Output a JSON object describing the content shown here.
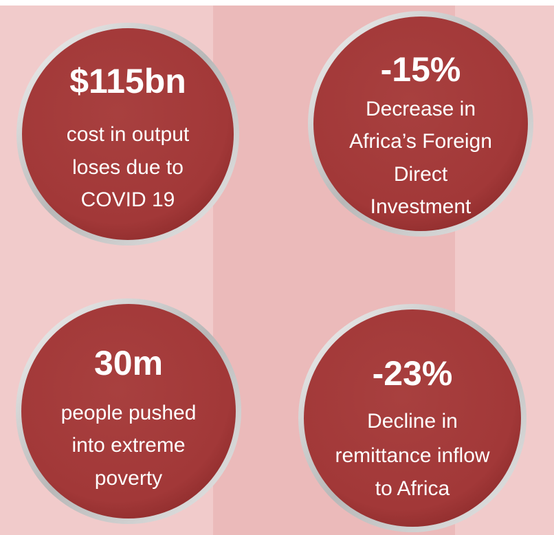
{
  "stats": [
    {
      "value": "$115bn",
      "description": [
        "cost in output",
        "loses due to",
        "COVID 19"
      ]
    },
    {
      "value": "-15%",
      "description": [
        "Decrease in",
        "Africa’s Foreign",
        "Direct",
        "Investment"
      ]
    },
    {
      "value": "30m",
      "description": [
        "people pushed",
        "into extreme",
        "poverty"
      ]
    },
    {
      "value": "-23%",
      "description": [
        "Decline in",
        "remittance inflow",
        "to Africa"
      ]
    }
  ]
}
